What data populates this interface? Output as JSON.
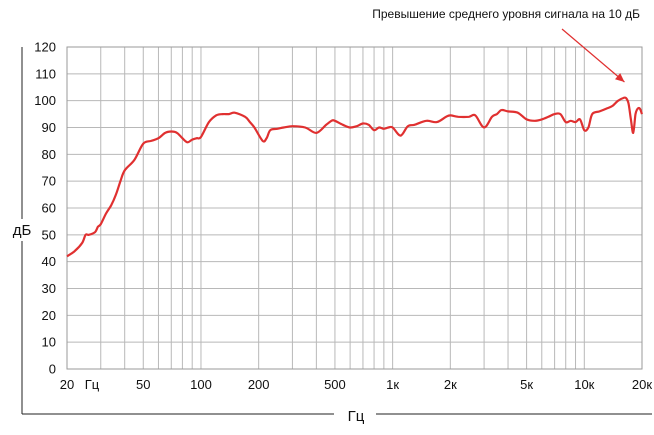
{
  "chart_data": {
    "type": "line",
    "xlabel": "Гц",
    "ylabel": "дБ",
    "xscale": "log",
    "xlim": [
      20,
      20000
    ],
    "ylim": [
      0,
      120
    ],
    "grid": true,
    "y_ticks": [
      0,
      10,
      20,
      30,
      40,
      50,
      60,
      70,
      80,
      90,
      100,
      110,
      120
    ],
    "x_ticks": [
      {
        "value": 20,
        "label": "20"
      },
      {
        "value": 27,
        "label": "Гц"
      },
      {
        "value": 50,
        "label": "50"
      },
      {
        "value": 100,
        "label": "100"
      },
      {
        "value": 200,
        "label": "200"
      },
      {
        "value": 500,
        "label": "500"
      },
      {
        "value": 1000,
        "label": "1к"
      },
      {
        "value": 2000,
        "label": "2к"
      },
      {
        "value": 5000,
        "label": "5к"
      },
      {
        "value": 10000,
        "label": "10к"
      },
      {
        "value": 20000,
        "label": "20к"
      }
    ],
    "annotation": {
      "text": "Превышение среднего уровня сигнала на 10 дБ",
      "points_to": {
        "x": 17000,
        "y": 101
      }
    },
    "series": [
      {
        "color": "#e03030",
        "x": [
          20,
          22,
          24,
          25,
          26,
          28,
          29,
          30,
          32,
          34,
          36,
          38,
          40,
          45,
          50,
          55,
          60,
          65,
          70,
          75,
          80,
          85,
          90,
          95,
          100,
          110,
          120,
          130,
          140,
          150,
          170,
          180,
          190,
          210,
          220,
          230,
          250,
          270,
          300,
          350,
          400,
          450,
          480,
          500,
          550,
          600,
          650,
          700,
          750,
          800,
          850,
          900,
          950,
          1000,
          1100,
          1200,
          1300,
          1500,
          1700,
          1900,
          2000,
          2200,
          2500,
          2700,
          3000,
          3300,
          3500,
          3700,
          4000,
          4500,
          5000,
          5500,
          6000,
          6500,
          7000,
          7500,
          8000,
          8500,
          9000,
          9500,
          10000,
          10500,
          11000,
          12000,
          13000,
          14000,
          15000,
          16000,
          16500,
          17000,
          17500,
          18000,
          18500,
          19000,
          19500,
          20000
        ],
        "y": [
          42,
          44,
          47,
          50,
          50,
          51,
          53,
          54,
          58,
          61,
          65,
          70,
          74,
          78,
          84,
          85,
          86,
          88,
          88.5,
          88,
          86,
          84.5,
          85.5,
          86,
          86.5,
          92,
          94.5,
          95,
          95,
          95.5,
          94,
          92,
          90,
          85,
          86,
          89,
          89.5,
          90,
          90.5,
          90,
          88,
          91,
          92.5,
          92.5,
          91,
          90,
          90.5,
          91.5,
          91,
          89,
          90,
          89.5,
          90,
          90,
          87,
          90.5,
          91,
          92.5,
          92,
          94,
          94.5,
          94,
          94,
          94.5,
          90,
          94,
          95,
          96.5,
          96,
          95.5,
          93,
          92.5,
          93,
          94,
          95,
          95,
          92,
          92.5,
          92,
          93,
          89,
          90,
          95,
          96,
          97,
          98,
          100,
          101,
          101,
          99,
          93,
          88,
          95,
          97,
          97,
          95
        ]
      }
    ]
  }
}
